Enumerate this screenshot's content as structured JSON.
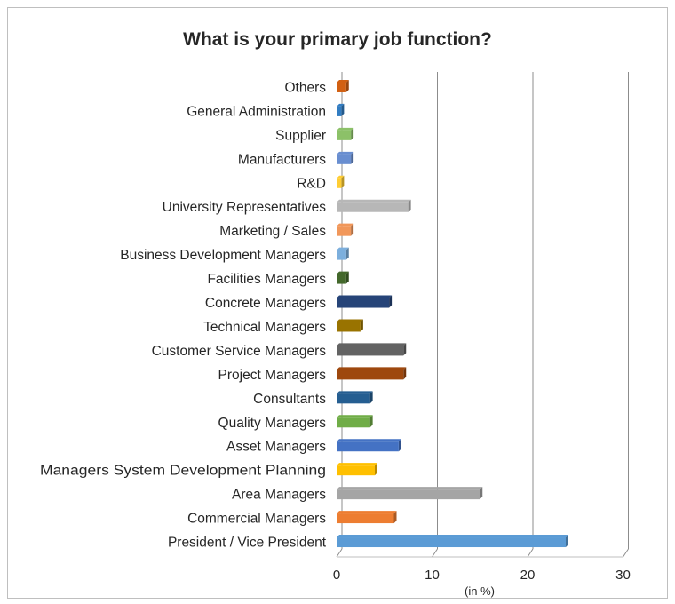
{
  "chart_data": {
    "type": "bar",
    "orientation": "horizontal",
    "title": "What is your primary job function?",
    "xlabel": "(in %)",
    "ylabel": "",
    "xlim": [
      0,
      30
    ],
    "xticks": [
      "0",
      "10",
      "20",
      "30"
    ],
    "grid": true,
    "legend": "none",
    "categories": [
      "President / Vice President",
      "Commercial Managers",
      "Area Managers",
      "Managers System Development Planning",
      "Asset Managers",
      "Quality Managers",
      "Consultants",
      "Project Managers",
      "Customer Service Managers",
      "Technical Managers",
      "Concrete Managers",
      "Facilities Managers",
      "Business Development Managers",
      "Marketing / Sales",
      "University Representatives",
      "R&D",
      "Manufacturers",
      "Supplier",
      "General Administration",
      "Others"
    ],
    "values": [
      24.0,
      6.0,
      15.0,
      4.0,
      6.5,
      3.5,
      3.5,
      7.0,
      7.0,
      2.5,
      5.5,
      1.0,
      1.0,
      1.5,
      7.5,
      0.5,
      1.5,
      1.5,
      0.5,
      1.0
    ],
    "colors": [
      "#5b9bd5",
      "#ed7d31",
      "#a5a5a5",
      "#ffc000",
      "#4472c4",
      "#70ad47",
      "#255e91",
      "#9e480e",
      "#636363",
      "#997300",
      "#264478",
      "#43682b",
      "#7cafdd",
      "#f1975a",
      "#b7b7b7",
      "#ffcd33",
      "#698ed0",
      "#8cc168",
      "#327dc2",
      "#d26012"
    ]
  }
}
